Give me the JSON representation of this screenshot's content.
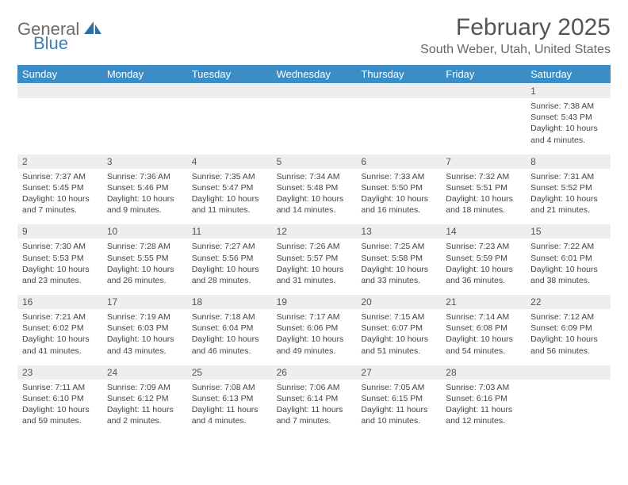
{
  "brand": {
    "word1": "General",
    "word2": "Blue",
    "color1": "#6b6b6b",
    "color2": "#3c7fb6",
    "sail_color": "#2e6fa3"
  },
  "title": "February 2025",
  "location": "South Weber, Utah, United States",
  "header_bg": "#3c8dc5",
  "stripe_bg": "#eeeeee",
  "text_color": "#444444",
  "day_names": [
    "Sunday",
    "Monday",
    "Tuesday",
    "Wednesday",
    "Thursday",
    "Friday",
    "Saturday"
  ],
  "weeks": [
    {
      "nums": [
        "",
        "",
        "",
        "",
        "",
        "",
        "1"
      ],
      "cells": [
        null,
        null,
        null,
        null,
        null,
        null,
        {
          "sunrise": "7:38 AM",
          "sunset": "5:43 PM",
          "daylight": "10 hours and 4 minutes."
        }
      ]
    },
    {
      "nums": [
        "2",
        "3",
        "4",
        "5",
        "6",
        "7",
        "8"
      ],
      "cells": [
        {
          "sunrise": "7:37 AM",
          "sunset": "5:45 PM",
          "daylight": "10 hours and 7 minutes."
        },
        {
          "sunrise": "7:36 AM",
          "sunset": "5:46 PM",
          "daylight": "10 hours and 9 minutes."
        },
        {
          "sunrise": "7:35 AM",
          "sunset": "5:47 PM",
          "daylight": "10 hours and 11 minutes."
        },
        {
          "sunrise": "7:34 AM",
          "sunset": "5:48 PM",
          "daylight": "10 hours and 14 minutes."
        },
        {
          "sunrise": "7:33 AM",
          "sunset": "5:50 PM",
          "daylight": "10 hours and 16 minutes."
        },
        {
          "sunrise": "7:32 AM",
          "sunset": "5:51 PM",
          "daylight": "10 hours and 18 minutes."
        },
        {
          "sunrise": "7:31 AM",
          "sunset": "5:52 PM",
          "daylight": "10 hours and 21 minutes."
        }
      ]
    },
    {
      "nums": [
        "9",
        "10",
        "11",
        "12",
        "13",
        "14",
        "15"
      ],
      "cells": [
        {
          "sunrise": "7:30 AM",
          "sunset": "5:53 PM",
          "daylight": "10 hours and 23 minutes."
        },
        {
          "sunrise": "7:28 AM",
          "sunset": "5:55 PM",
          "daylight": "10 hours and 26 minutes."
        },
        {
          "sunrise": "7:27 AM",
          "sunset": "5:56 PM",
          "daylight": "10 hours and 28 minutes."
        },
        {
          "sunrise": "7:26 AM",
          "sunset": "5:57 PM",
          "daylight": "10 hours and 31 minutes."
        },
        {
          "sunrise": "7:25 AM",
          "sunset": "5:58 PM",
          "daylight": "10 hours and 33 minutes."
        },
        {
          "sunrise": "7:23 AM",
          "sunset": "5:59 PM",
          "daylight": "10 hours and 36 minutes."
        },
        {
          "sunrise": "7:22 AM",
          "sunset": "6:01 PM",
          "daylight": "10 hours and 38 minutes."
        }
      ]
    },
    {
      "nums": [
        "16",
        "17",
        "18",
        "19",
        "20",
        "21",
        "22"
      ],
      "cells": [
        {
          "sunrise": "7:21 AM",
          "sunset": "6:02 PM",
          "daylight": "10 hours and 41 minutes."
        },
        {
          "sunrise": "7:19 AM",
          "sunset": "6:03 PM",
          "daylight": "10 hours and 43 minutes."
        },
        {
          "sunrise": "7:18 AM",
          "sunset": "6:04 PM",
          "daylight": "10 hours and 46 minutes."
        },
        {
          "sunrise": "7:17 AM",
          "sunset": "6:06 PM",
          "daylight": "10 hours and 49 minutes."
        },
        {
          "sunrise": "7:15 AM",
          "sunset": "6:07 PM",
          "daylight": "10 hours and 51 minutes."
        },
        {
          "sunrise": "7:14 AM",
          "sunset": "6:08 PM",
          "daylight": "10 hours and 54 minutes."
        },
        {
          "sunrise": "7:12 AM",
          "sunset": "6:09 PM",
          "daylight": "10 hours and 56 minutes."
        }
      ]
    },
    {
      "nums": [
        "23",
        "24",
        "25",
        "26",
        "27",
        "28",
        ""
      ],
      "cells": [
        {
          "sunrise": "7:11 AM",
          "sunset": "6:10 PM",
          "daylight": "10 hours and 59 minutes."
        },
        {
          "sunrise": "7:09 AM",
          "sunset": "6:12 PM",
          "daylight": "11 hours and 2 minutes."
        },
        {
          "sunrise": "7:08 AM",
          "sunset": "6:13 PM",
          "daylight": "11 hours and 4 minutes."
        },
        {
          "sunrise": "7:06 AM",
          "sunset": "6:14 PM",
          "daylight": "11 hours and 7 minutes."
        },
        {
          "sunrise": "7:05 AM",
          "sunset": "6:15 PM",
          "daylight": "11 hours and 10 minutes."
        },
        {
          "sunrise": "7:03 AM",
          "sunset": "6:16 PM",
          "daylight": "11 hours and 12 minutes."
        },
        null
      ]
    }
  ],
  "labels": {
    "sunrise": "Sunrise:",
    "sunset": "Sunset:",
    "daylight": "Daylight:"
  }
}
